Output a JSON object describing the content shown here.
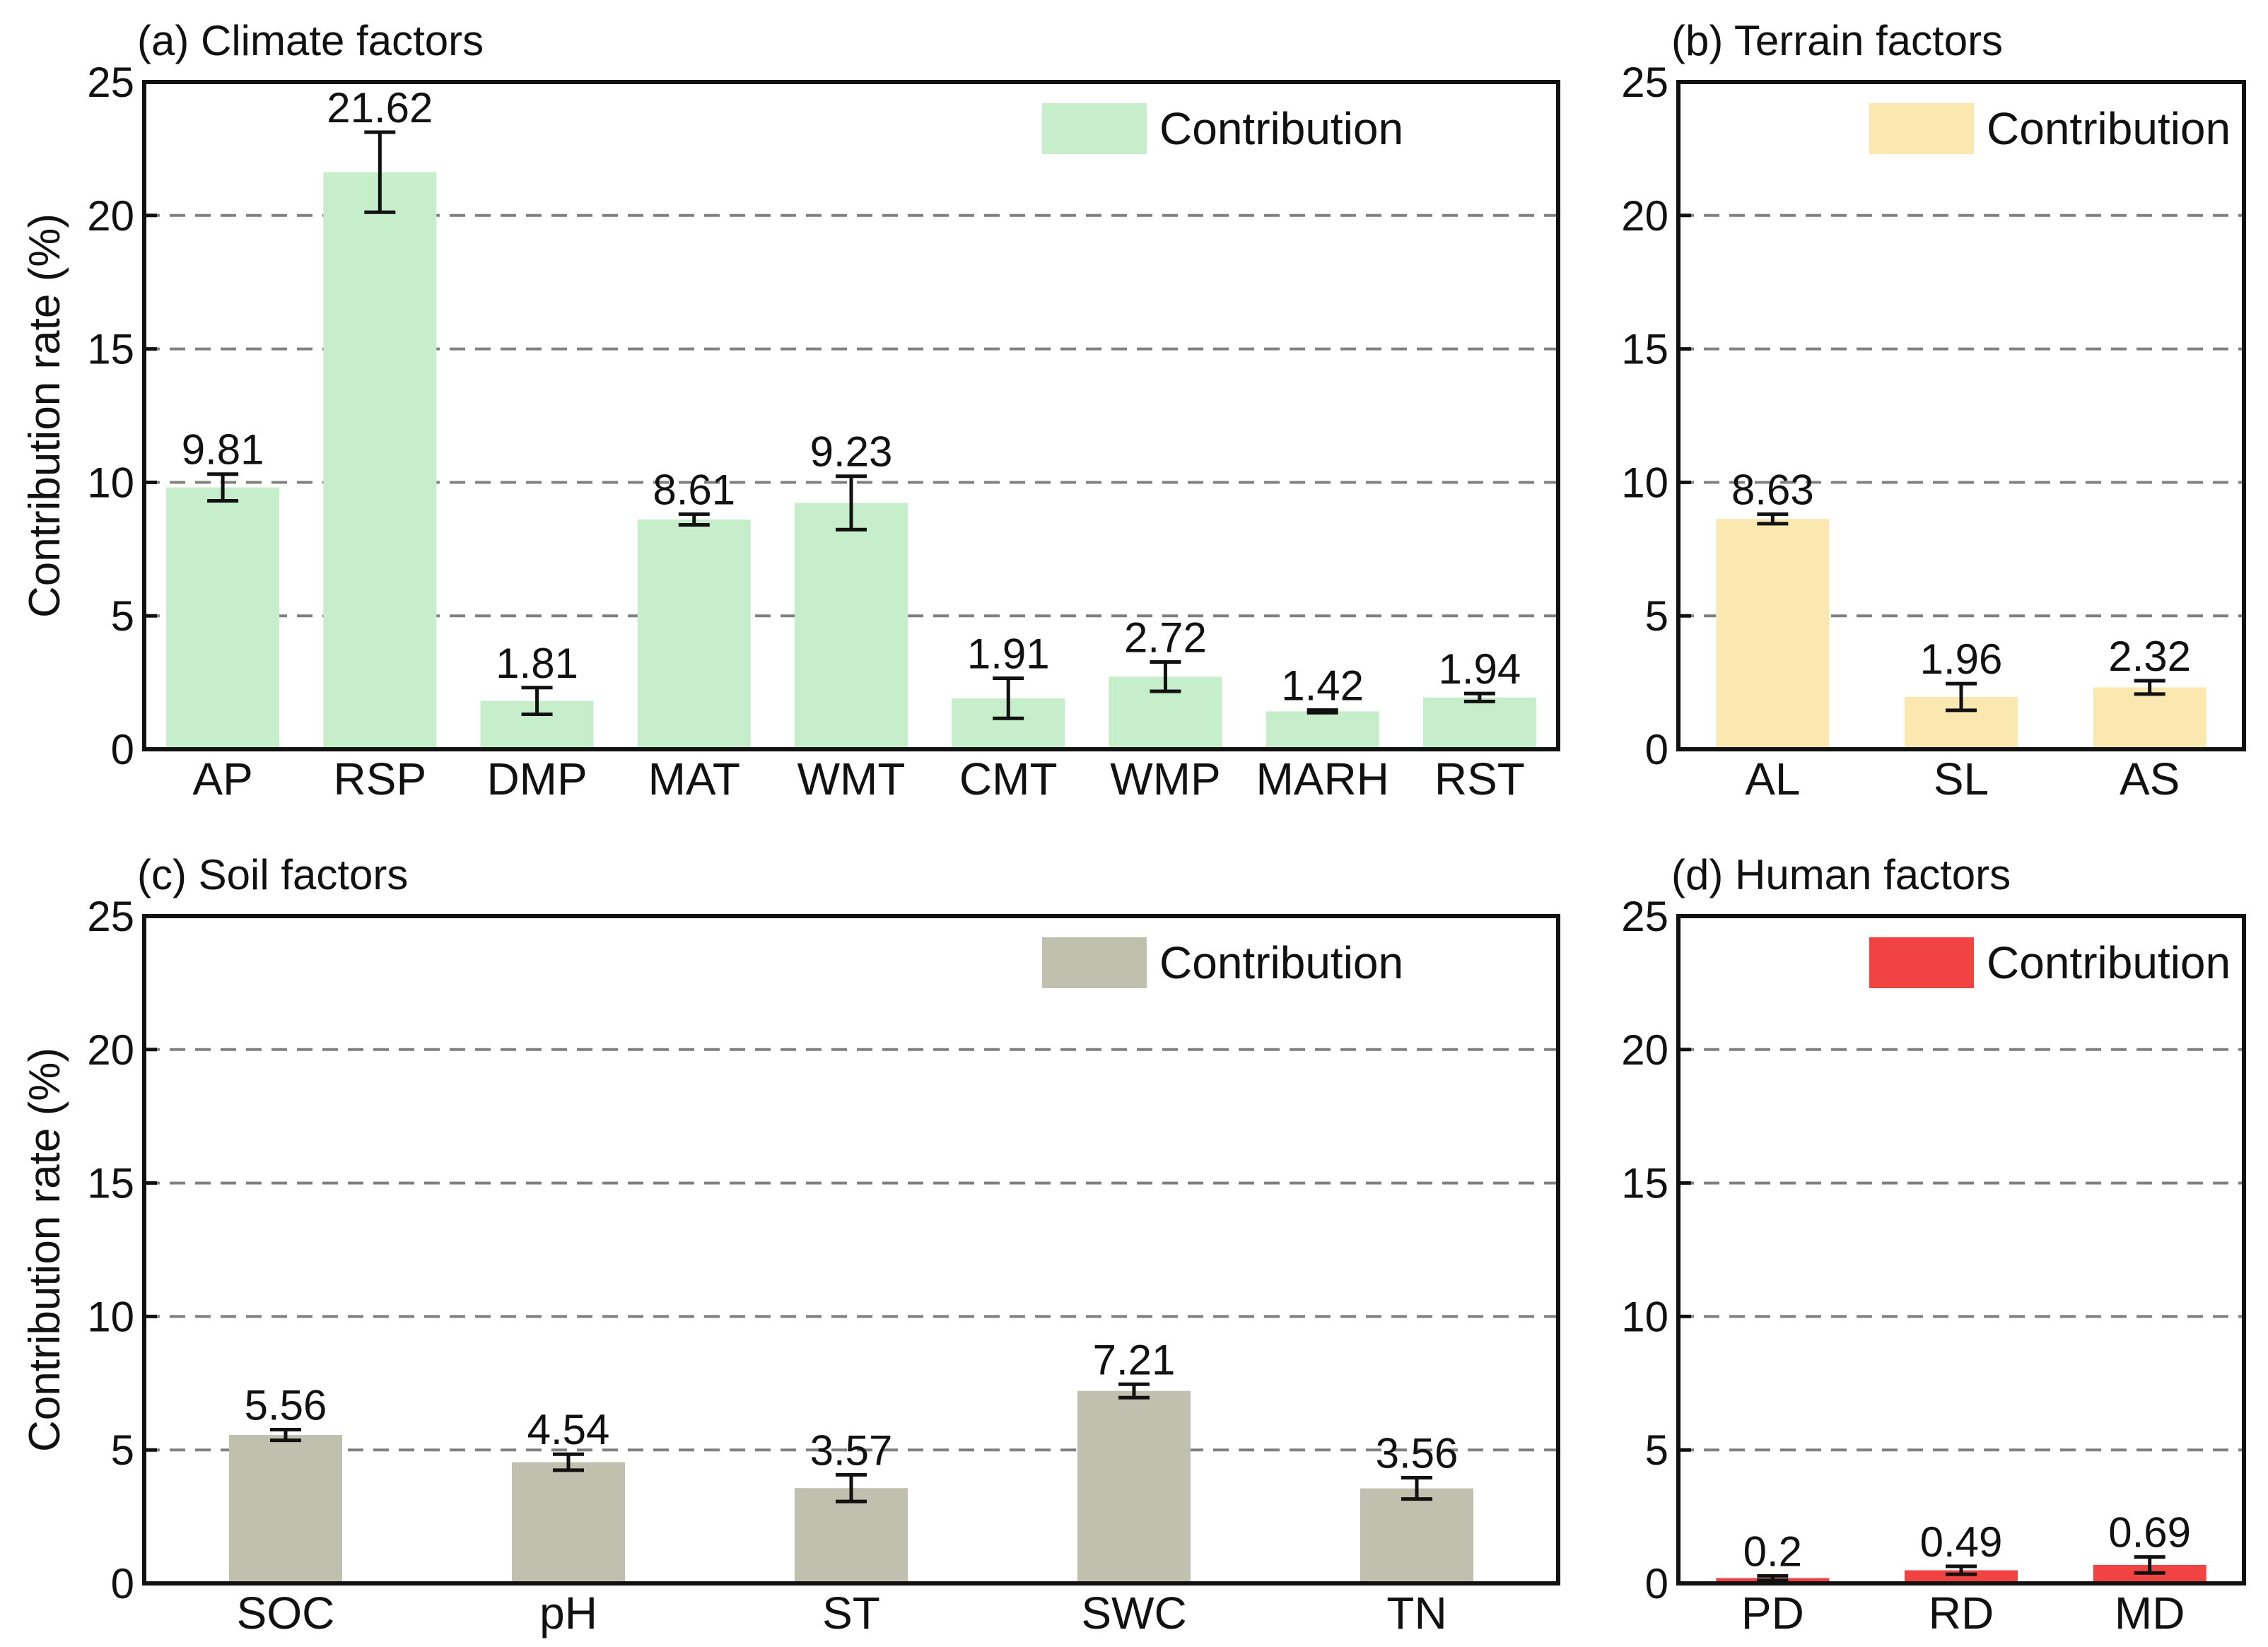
{
  "chart_data": [
    {
      "id": "a",
      "type": "bar",
      "title": "(a) Climate factors",
      "xlabel": "",
      "ylabel": "Contribution rate (%)",
      "ylim": [
        0,
        25
      ],
      "yticks": [
        0,
        5,
        10,
        15,
        20,
        25
      ],
      "grid": "dashed horizontal",
      "legend": {
        "label": "Contribution",
        "position": "top-right"
      },
      "color": "#c6eecb",
      "categories": [
        "AP",
        "RSP",
        "DMP",
        "MAT",
        "WMT",
        "CMT",
        "WMP",
        "MARH",
        "RST"
      ],
      "values": [
        9.81,
        21.62,
        1.81,
        8.61,
        9.23,
        1.91,
        2.72,
        1.42,
        1.94
      ],
      "value_labels": [
        "9.81",
        "21.62",
        "1.81",
        "8.61",
        "9.23",
        "1.91",
        "2.72",
        "1.42",
        "1.94"
      ],
      "errors": [
        0.5,
        1.5,
        0.5,
        0.2,
        1.0,
        0.75,
        0.55,
        0.05,
        0.15
      ]
    },
    {
      "id": "b",
      "type": "bar",
      "title": "(b) Terrain factors",
      "xlabel": "",
      "ylabel": "",
      "ylim": [
        0,
        25
      ],
      "yticks": [
        0,
        5,
        10,
        15,
        20,
        25
      ],
      "grid": "dashed horizontal",
      "legend": {
        "label": "Contribution",
        "position": "top-right"
      },
      "color": "#fbe8b0",
      "categories": [
        "AL",
        "SL",
        "AS"
      ],
      "values": [
        8.63,
        1.96,
        2.32
      ],
      "value_labels": [
        "8.63",
        "1.96",
        "2.32"
      ],
      "errors": [
        0.18,
        0.5,
        0.25
      ]
    },
    {
      "id": "c",
      "type": "bar",
      "title": "(c) Soil factors",
      "xlabel": "",
      "ylabel": "Contribution rate (%)",
      "ylim": [
        0,
        25
      ],
      "yticks": [
        0,
        5,
        10,
        15,
        20,
        25
      ],
      "grid": "dashed horizontal",
      "legend": {
        "label": "Contribution",
        "position": "top-right"
      },
      "color": "#c0c0af",
      "categories": [
        "SOC",
        "pH",
        "ST",
        "SWC",
        "TN"
      ],
      "values": [
        5.56,
        4.54,
        3.57,
        7.21,
        3.56
      ],
      "value_labels": [
        "5.56",
        "4.54",
        "3.57",
        "7.21",
        "3.56"
      ],
      "errors": [
        0.2,
        0.3,
        0.5,
        0.25,
        0.4
      ]
    },
    {
      "id": "d",
      "type": "bar",
      "title": "(d) Human factors",
      "xlabel": "",
      "ylabel": "",
      "ylim": [
        0,
        25
      ],
      "yticks": [
        0,
        5,
        10,
        15,
        20,
        25
      ],
      "grid": "dashed horizontal",
      "legend": {
        "label": "Contribution",
        "position": "top-right"
      },
      "color": "#f24343",
      "categories": [
        "PD",
        "RD",
        "MD"
      ],
      "values": [
        0.2,
        0.49,
        0.69
      ],
      "value_labels": [
        "0.2",
        "0.49",
        "0.69"
      ],
      "errors": [
        0.08,
        0.15,
        0.3
      ]
    }
  ]
}
